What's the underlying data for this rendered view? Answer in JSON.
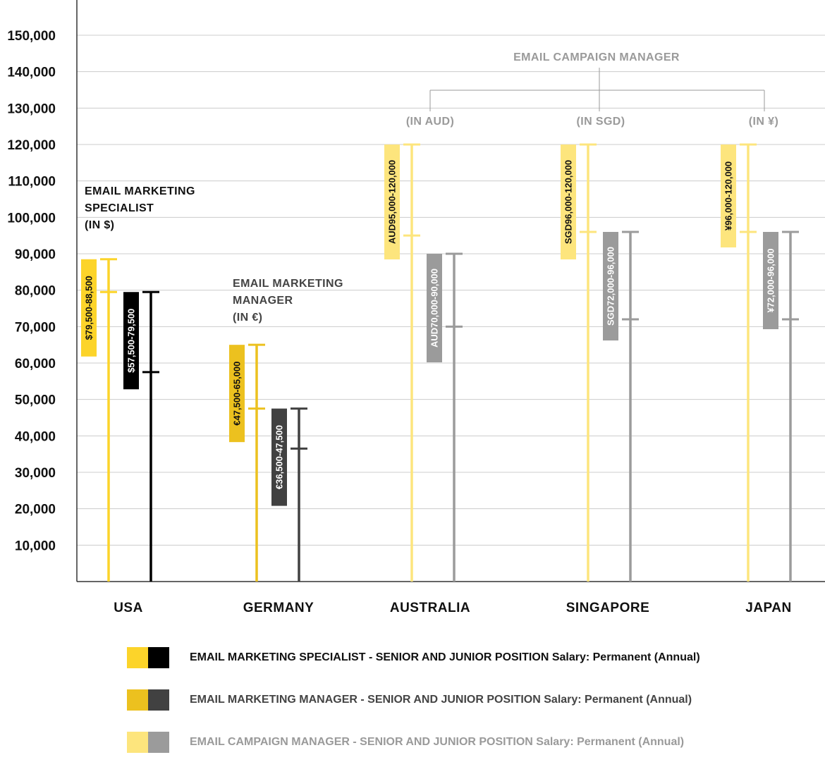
{
  "chart_data": {
    "type": "range",
    "ylim": [
      0,
      150000
    ],
    "y_ticks": [
      {
        "value": 150000,
        "label": "150,000"
      },
      {
        "value": 140000,
        "label": "140,000"
      },
      {
        "value": 130000,
        "label": "130,000"
      },
      {
        "value": 120000,
        "label": "120,000"
      },
      {
        "value": 110000,
        "label": "110,000"
      },
      {
        "value": 100000,
        "label": "100,000"
      },
      {
        "value": 90000,
        "label": "90,000"
      },
      {
        "value": 80000,
        "label": "80,000"
      },
      {
        "value": 70000,
        "label": "70,000"
      },
      {
        "value": 60000,
        "label": "60,000"
      },
      {
        "value": 50000,
        "label": "50,000"
      },
      {
        "value": 40000,
        "label": "40,000"
      },
      {
        "value": 30000,
        "label": "30,000"
      },
      {
        "value": 20000,
        "label": "20,000"
      },
      {
        "value": 10000,
        "label": "10,000"
      }
    ],
    "grid": true,
    "categories": [
      "USA",
      "GERMANY",
      "AUSTRALIA",
      "SINGAPORE",
      "JAPAN"
    ],
    "series": [
      {
        "name": "EMAIL MARKETING SPECIALIST - SENIOR AND JUNIOR POSITION Salary: Permanent (Annual)",
        "country": "USA",
        "level": "senior",
        "low": 79500,
        "high": 88500,
        "label": "$79,500-88,500",
        "color": "#fcd42a",
        "text_color": "#111111"
      },
      {
        "name": "EMAIL MARKETING SPECIALIST - SENIOR AND JUNIOR POSITION Salary: Permanent (Annual)",
        "country": "USA",
        "level": "junior",
        "low": 57500,
        "high": 79500,
        "label": "$57,500-79,500",
        "color": "#000000",
        "text_color": "#ffffff"
      },
      {
        "name": "EMAIL MARKETING MANAGER - SENIOR AND JUNIOR POSITION Salary: Permanent (Annual)",
        "country": "GERMANY",
        "level": "senior",
        "low": 47500,
        "high": 65000,
        "label": "€47,500-65,000",
        "color": "#ecc11f",
        "text_color": "#111111"
      },
      {
        "name": "EMAIL MARKETING MANAGER - SENIOR AND JUNIOR POSITION Salary: Permanent (Annual)",
        "country": "GERMANY",
        "level": "junior",
        "low": 36500,
        "high": 47500,
        "label": "€36,500-47,500",
        "color": "#414141",
        "text_color": "#ffffff"
      },
      {
        "name": "EMAIL CAMPAIGN MANAGER - SENIOR AND JUNIOR POSITION Salary: Permanent (Annual)",
        "country": "AUSTRALIA",
        "level": "senior",
        "low": 95000,
        "high": 120000,
        "label": "AUD95,000-120,000",
        "color": "#fde57d",
        "text_color": "#111111"
      },
      {
        "name": "EMAIL CAMPAIGN MANAGER - SENIOR AND JUNIOR POSITION Salary: Permanent (Annual)",
        "country": "AUSTRALIA",
        "level": "junior",
        "low": 70000,
        "high": 90000,
        "label": "AUD70,000-90,000",
        "color": "#9b9b9b",
        "text_color": "#ffffff"
      },
      {
        "name": "EMAIL CAMPAIGN MANAGER - SENIOR AND JUNIOR POSITION Salary: Permanent (Annual)",
        "country": "SINGAPORE",
        "level": "senior",
        "low": 96000,
        "high": 120000,
        "label": "SGD96,000-120,000",
        "color": "#fde57d",
        "text_color": "#111111"
      },
      {
        "name": "EMAIL CAMPAIGN MANAGER - SENIOR AND JUNIOR POSITION Salary: Permanent (Annual)",
        "country": "SINGAPORE",
        "level": "junior",
        "low": 72000,
        "high": 96000,
        "label": "SGD72,000-96,000",
        "color": "#9b9b9b",
        "text_color": "#ffffff"
      },
      {
        "name": "EMAIL CAMPAIGN MANAGER - SENIOR AND JUNIOR POSITION Salary: Permanent (Annual)",
        "country": "JAPAN",
        "level": "senior",
        "low": 96000,
        "high": 120000,
        "label": "¥96,000-120,000",
        "color": "#fde57d",
        "text_color": "#111111"
      },
      {
        "name": "EMAIL CAMPAIGN MANAGER - SENIOR AND JUNIOR POSITION Salary: Permanent (Annual)",
        "country": "JAPAN",
        "level": "junior",
        "low": 72000,
        "high": 96000,
        "label": "¥72,000-96,000",
        "color": "#9b9b9b",
        "text_color": "#ffffff"
      }
    ],
    "annotations": {
      "specialist": [
        "EMAIL MARKETING",
        "SPECIALIST",
        "(IN $)"
      ],
      "manager": [
        "EMAIL MARKETING",
        "MANAGER",
        "(IN €)"
      ],
      "campaign_title": "EMAIL CAMPAIGN MANAGER",
      "campaign_units": [
        "(IN AUD)",
        "(IN SGD)",
        "(IN ¥)"
      ]
    },
    "annotation_colors": {
      "specialist": "#111111",
      "manager": "#444444",
      "campaign": "#9a9a9a"
    },
    "legend": [
      {
        "label": "EMAIL MARKETING SPECIALIST - SENIOR AND JUNIOR POSITION Salary: Permanent (Annual)",
        "colors": [
          "#fcd42a",
          "#000000"
        ],
        "text_color": "#111111"
      },
      {
        "label": "EMAIL MARKETING MANAGER - SENIOR AND JUNIOR POSITION Salary: Permanent (Annual)",
        "colors": [
          "#ecc11f",
          "#414141"
        ],
        "text_color": "#444444"
      },
      {
        "label": "EMAIL CAMPAIGN MANAGER - SENIOR AND JUNIOR POSITION Salary: Permanent (Annual)",
        "colors": [
          "#fde57d",
          "#9b9b9b"
        ],
        "text_color": "#9a9a9a"
      }
    ],
    "colors": {
      "grid": "#cccccc",
      "axis": "#333333",
      "bracket": "#9a9a9a"
    }
  }
}
